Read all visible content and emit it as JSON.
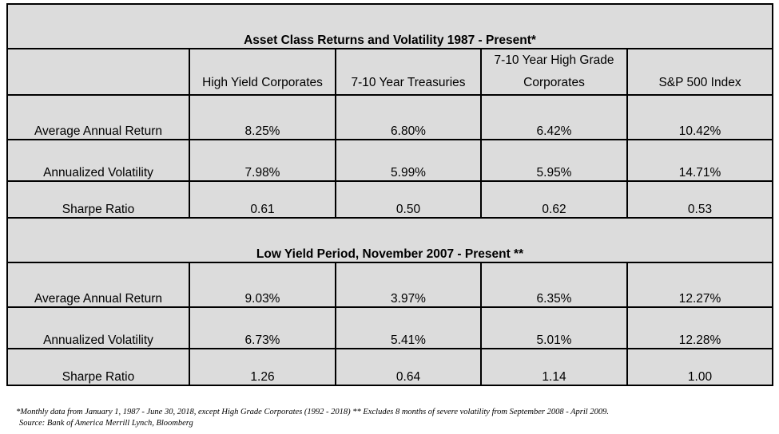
{
  "chart_data": {
    "type": "table",
    "title": "Asset Class Returns and Volatility 1987 - Present*",
    "columns": [
      "High Yield Corporates",
      "7-10 Year Treasuries",
      "7-10 Year High Grade Corporates",
      "S&P 500 Index"
    ],
    "column_lines": [
      [
        "High Yield Corporates"
      ],
      [
        "7-10 Year Treasuries"
      ],
      [
        "7-10 Year High Grade",
        "Corporates"
      ],
      [
        "S&P 500 Index"
      ]
    ],
    "sections": [
      {
        "title": "Asset Class Returns and Volatility 1987 - Present*",
        "rows": [
          {
            "label": "Average Annual Return",
            "values": [
              "8.25%",
              "6.80%",
              "6.42%",
              "10.42%"
            ]
          },
          {
            "label": "Annualized Volatility",
            "values": [
              "7.98%",
              "5.99%",
              "5.95%",
              "14.71%"
            ]
          },
          {
            "label": "Sharpe Ratio",
            "values": [
              "0.61",
              "0.50",
              "0.62",
              "0.53"
            ]
          }
        ]
      },
      {
        "title": "Low Yield Period, November 2007 - Present **",
        "rows": [
          {
            "label": "Average Annual Return",
            "values": [
              "9.03%",
              "3.97%",
              "6.35%",
              "12.27%"
            ]
          },
          {
            "label": "Annualized Volatility",
            "values": [
              "6.73%",
              "5.41%",
              "5.01%",
              "12.28%"
            ]
          },
          {
            "label": "Sharpe Ratio",
            "values": [
              "1.26",
              "0.64",
              "1.14",
              "1.00"
            ]
          }
        ]
      }
    ]
  },
  "footnotes": {
    "note": "*Monthly data from January 1, 1987 - June 30, 2018, except High Grade Corporates (1992 - 2018) ** Excludes 8 months of severe volatility from September 2008 - April 2009.",
    "source": "Source: Bank of America Merrill Lynch, Bloomberg"
  },
  "colors": {
    "band": "#a6a6a6",
    "cell": "#dcdcdc",
    "border": "#000000"
  }
}
